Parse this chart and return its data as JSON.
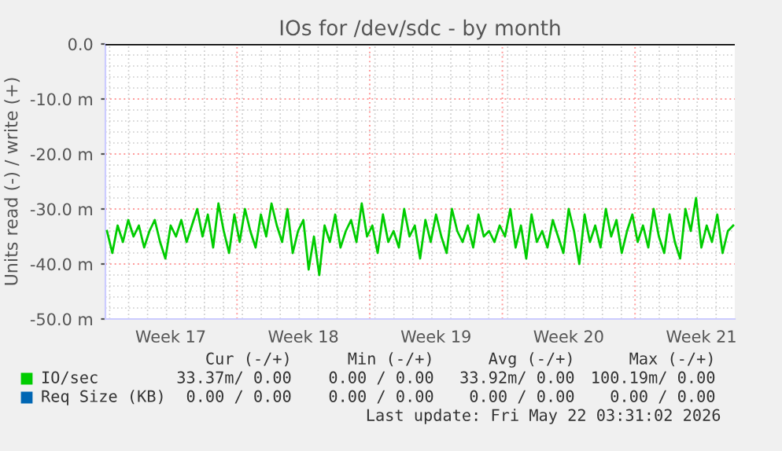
{
  "chart_data": {
    "type": "line",
    "title": "IOs for /dev/sdc - by month",
    "ylabel": "Units read (-) / write (+)",
    "categories": [
      null,
      null,
      null,
      null,
      null,
      null,
      null,
      null,
      null,
      null,
      null,
      null,
      "Week 17",
      null,
      null,
      null,
      null,
      null,
      null,
      null,
      null,
      null,
      null,
      null,
      null,
      null,
      null,
      null,
      null,
      null,
      null,
      null,
      null,
      null,
      null,
      null,
      null,
      "Week 18",
      null,
      null,
      null,
      null,
      null,
      null,
      null,
      null,
      null,
      null,
      null,
      null,
      null,
      null,
      null,
      null,
      null,
      null,
      null,
      null,
      null,
      null,
      null,
      null,
      "Week 19",
      null,
      null,
      null,
      null,
      null,
      null,
      null,
      null,
      null,
      null,
      null,
      null,
      null,
      null,
      null,
      null,
      null,
      null,
      null,
      null,
      null,
      null,
      null,
      null,
      "Week 20",
      null,
      null,
      null,
      null,
      null,
      null,
      null,
      null,
      null,
      null,
      null,
      null,
      null,
      null,
      null,
      null,
      null,
      null,
      null,
      null,
      null,
      null,
      null,
      null,
      "Week 21",
      null,
      null,
      null,
      null,
      null,
      null
    ],
    "series": [
      {
        "name": "IO/sec",
        "color": "#00cc00",
        "values": [
          -34,
          -38,
          -33,
          -36,
          -32,
          -35,
          -33,
          -37,
          -34,
          -32,
          -36,
          -39,
          -33,
          -35,
          -32,
          -36,
          -33,
          -30,
          -35,
          -31,
          -37,
          -29,
          -34,
          -38,
          -31,
          -36,
          -30,
          -34,
          -37,
          -31,
          -35,
          -29,
          -33,
          -36,
          -30,
          -38,
          -34,
          -32,
          -41,
          -35,
          -42,
          -33,
          -36,
          -31,
          -37,
          -34,
          -32,
          -36,
          -29,
          -35,
          -33,
          -38,
          -31,
          -36,
          -34,
          -37,
          -30,
          -35,
          -33,
          -39,
          -32,
          -36,
          -31,
          -35,
          -38,
          -30,
          -34,
          -36,
          -33,
          -37,
          -31,
          -35,
          -34,
          -36,
          -33,
          -35,
          -30,
          -37,
          -33,
          -39,
          -31,
          -36,
          -34,
          -37,
          -32,
          -35,
          -38,
          -30,
          -34,
          -40,
          -31,
          -36,
          -33,
          -37,
          -30,
          -35,
          -32,
          -38,
          -34,
          -31,
          -36,
          -33,
          -37,
          -30,
          -35,
          -38,
          -31,
          -36,
          -39,
          -30,
          -34,
          -28,
          -37,
          -33,
          -36,
          -31,
          -38,
          -34,
          -33
        ]
      }
    ],
    "ylim": [
      -50,
      0
    ],
    "yticks": [
      {
        "value": 0,
        "label": "0.0"
      },
      {
        "value": -10,
        "label": "-10.0 m"
      },
      {
        "value": -20,
        "label": "-20.0 m"
      },
      {
        "value": -30,
        "label": "-30.0 m"
      },
      {
        "value": -40,
        "label": "-40.0 m"
      },
      {
        "value": -50,
        "label": "-50.0 m"
      }
    ],
    "ref_lines": [
      {
        "axis": "y",
        "value": 0,
        "color": "#000000"
      }
    ],
    "grid": true,
    "marker": "none",
    "line_style": "solid",
    "legend": "bottom",
    "annotations": [
      "Cur (-/+)",
      "Min (-/+)",
      "Avg (-/+)",
      "Max (-/+)",
      "33.37m/ 0.00",
      "0.00 / 0.00",
      "33.92m/ 0.00",
      "100.19m/ 0.00",
      "Req Size (KB)",
      "0.00 / 0.00",
      "0.00 / 0.00",
      "0.00 / 0.00",
      "0.00 / 0.00",
      "Last update: Fri May 22 03:31:02 2026"
    ]
  }
}
